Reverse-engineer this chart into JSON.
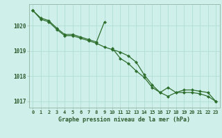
{
  "title": "Graphe pression niveau de la mer (hPa)",
  "background_color": "#cff0ea",
  "grid_color": "#b0ddd4",
  "line_color": "#2d6e2d",
  "tick_color": "#2d5a2d",
  "hours": [
    0,
    1,
    2,
    3,
    4,
    5,
    6,
    7,
    8,
    9,
    10,
    11,
    12,
    13,
    14,
    15,
    16,
    17,
    18,
    19,
    20,
    21,
    22,
    23
  ],
  "line1": [
    1020.6,
    1020.3,
    1020.2,
    1019.9,
    1019.65,
    1019.65,
    1019.55,
    1019.45,
    1019.35,
    1020.15,
    null,
    null,
    null,
    null,
    null,
    null,
    null,
    null,
    null,
    null,
    null,
    null,
    null,
    null
  ],
  "line2": [
    1020.6,
    1020.25,
    1020.15,
    1019.85,
    1019.6,
    1019.6,
    1019.5,
    1019.4,
    1019.3,
    1019.15,
    1019.05,
    1018.95,
    1018.8,
    1018.55,
    1018.05,
    1017.65,
    1017.35,
    1017.2,
    1017.35,
    1017.35,
    1017.35,
    1017.3,
    1017.2,
    1017.0
  ],
  "line3": [
    1020.6,
    null,
    null,
    null,
    null,
    null,
    null,
    null,
    null,
    null,
    1019.1,
    1018.7,
    1018.5,
    1018.2,
    1017.95,
    1017.55,
    1017.35,
    1017.55,
    1017.35,
    1017.45,
    1017.45,
    1017.4,
    1017.35,
    1017.0
  ],
  "ylim": [
    1016.75,
    1020.85
  ],
  "yticks": [
    1017,
    1018,
    1019,
    1020
  ],
  "xlim": [
    -0.5,
    23.5
  ]
}
